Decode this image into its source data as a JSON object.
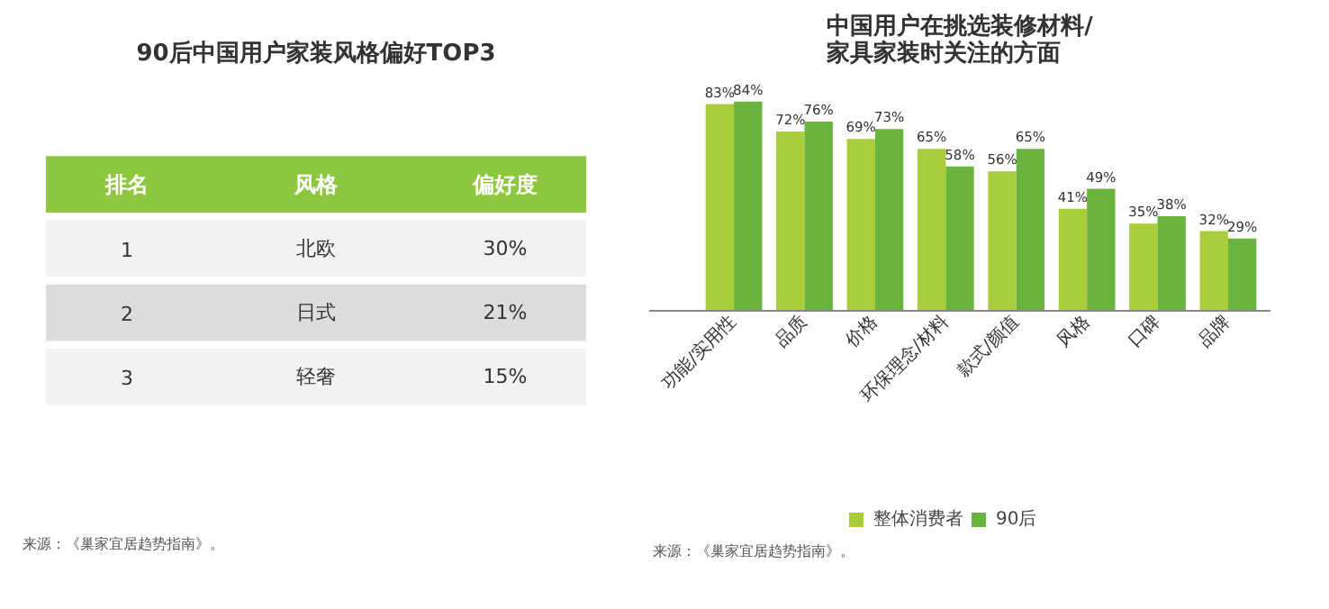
{
  "chart_data": [
    {
      "type": "other",
      "title": "90后中国用户家装风格偏好TOP3",
      "color": "#8dc63f",
      "annotations": [
        "排名",
        "风格",
        "偏好度",
        "1",
        "北欧",
        "30%",
        "2",
        "日式",
        "21%",
        "3",
        "轻奢",
        "15%",
        "来源：《巢家宜居趋势指南》。"
      ]
    },
    {
      "type": "bar",
      "title": "中国用户在挑选装修材料/\n家具家装时关注的方面",
      "categories": [
        "功能/实用性",
        "品质",
        "价格",
        "环保理念/材料",
        "款式/颜值",
        "风格",
        "口碑",
        "品牌"
      ],
      "series": [
        {
          "name": "整体消费者",
          "color": "#a8cc3a",
          "values": [
            83,
            72,
            69,
            65,
            56,
            41,
            35,
            32
          ],
          "value_labels": [
            "83%",
            "72%",
            "69%",
            "65%",
            "56%",
            "41%",
            "35%",
            "32%"
          ]
        },
        {
          "name": "90后",
          "color": "#6ab43e",
          "values": [
            84,
            76,
            73,
            58,
            65,
            49,
            38,
            29
          ],
          "value_labels": [
            "84%",
            "76%",
            "73%",
            "58%",
            "65%",
            "49%",
            "38%",
            "29%"
          ]
        }
      ],
      "legend": "bottom",
      "annotations": [
        "来源：《巢家宜居趋势指南》。"
      ]
    }
  ]
}
